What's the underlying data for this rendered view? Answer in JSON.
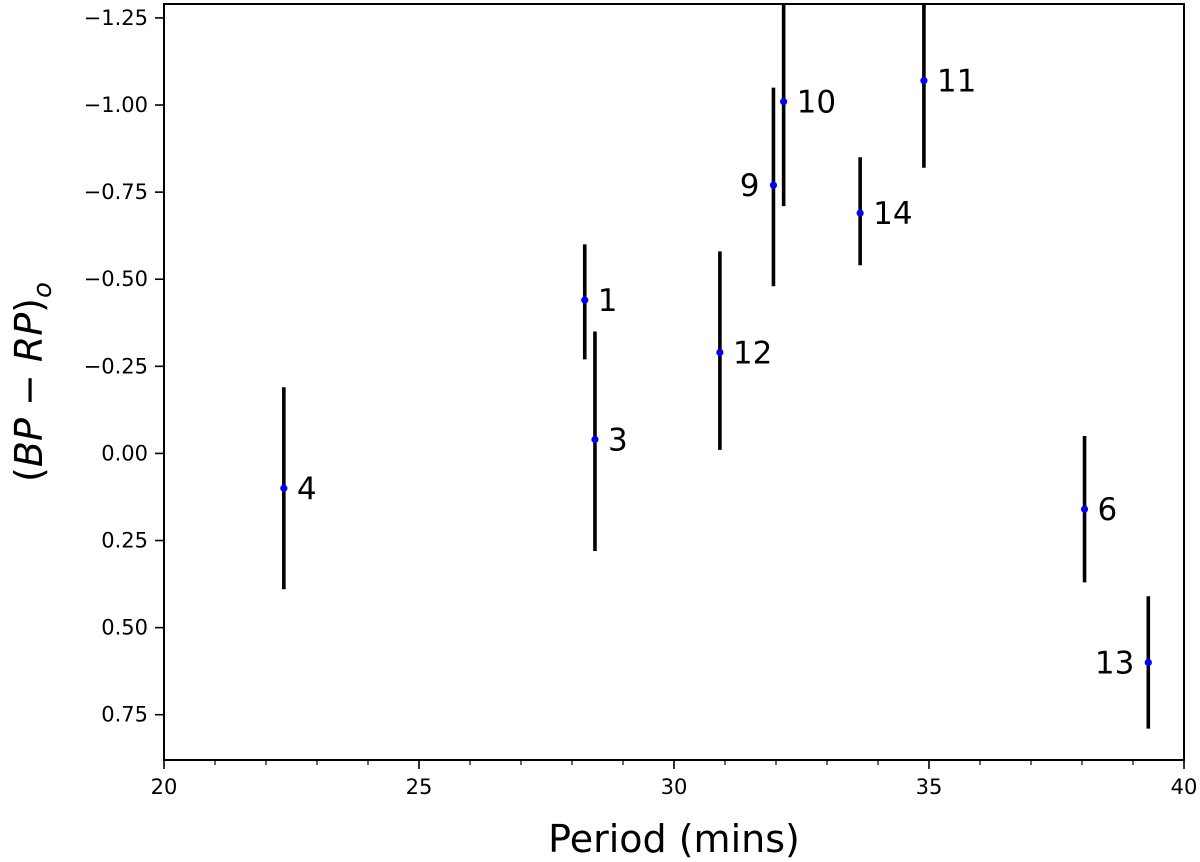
{
  "chart_data": {
    "type": "scatter",
    "title": "",
    "xlabel": "Period (mins)",
    "ylabel_parts": [
      "(",
      "BP",
      " − ",
      "RP",
      ")",
      "o"
    ],
    "xlim": [
      20,
      40
    ],
    "ylim": [
      0.88,
      -1.29
    ],
    "y_inverted": true,
    "grid": false,
    "x_ticks": [
      20,
      25,
      30,
      35,
      40
    ],
    "x_tick_labels": [
      "20",
      "25",
      "30",
      "35",
      "40"
    ],
    "x_minor_step": 1,
    "y_ticks": [
      -1.25,
      -1.0,
      -0.75,
      -0.5,
      -0.25,
      0.0,
      0.25,
      0.5,
      0.75
    ],
    "y_tick_labels": [
      "−1.25",
      "−1.00",
      "−0.75",
      "−0.50",
      "−0.25",
      "0.00",
      "0.25",
      "0.50",
      "0.75"
    ],
    "colors": {
      "point": "#0000ff",
      "errorbar": "#000000"
    },
    "points": [
      {
        "label": "4",
        "x": 22.35,
        "y": 0.1,
        "err_low": 0.29,
        "err_high": 0.29,
        "label_side": "right"
      },
      {
        "label": "1",
        "x": 28.25,
        "y": -0.44,
        "err_low": 0.16,
        "err_high": 0.17,
        "label_side": "right"
      },
      {
        "label": "3",
        "x": 28.45,
        "y": -0.04,
        "err_low": 0.31,
        "err_high": 0.32,
        "label_side": "right"
      },
      {
        "label": "12",
        "x": 30.9,
        "y": -0.29,
        "err_low": 0.29,
        "err_high": 0.28,
        "label_side": "right"
      },
      {
        "label": "9",
        "x": 31.95,
        "y": -0.77,
        "err_low": 0.28,
        "err_high": 0.29,
        "label_side": "left"
      },
      {
        "label": "10",
        "x": 32.15,
        "y": -1.01,
        "err_low": 0.28,
        "err_high": 0.3,
        "label_side": "right"
      },
      {
        "label": "14",
        "x": 33.65,
        "y": -0.69,
        "err_low": 0.16,
        "err_high": 0.15,
        "label_side": "right"
      },
      {
        "label": "11",
        "x": 34.9,
        "y": -1.07,
        "err_low": 0.26,
        "err_high": 0.25,
        "label_side": "right"
      },
      {
        "label": "6",
        "x": 38.05,
        "y": 0.16,
        "err_low": 0.21,
        "err_high": 0.21,
        "label_side": "right"
      },
      {
        "label": "13",
        "x": 39.3,
        "y": 0.6,
        "err_low": 0.19,
        "err_high": 0.19,
        "label_side": "left"
      }
    ]
  }
}
